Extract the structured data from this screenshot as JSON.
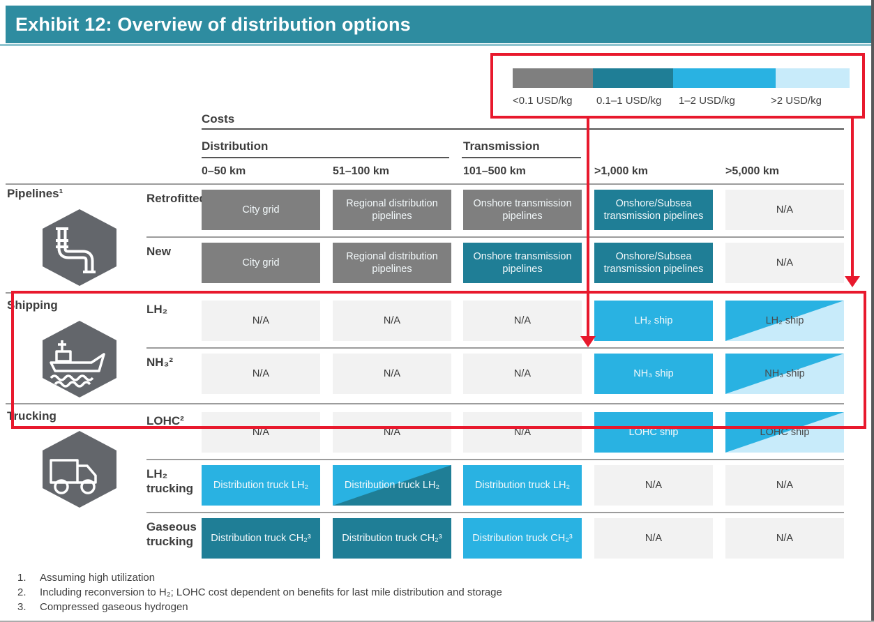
{
  "title": "Exhibit 12: Overview of distribution options",
  "palette": {
    "header_bar": "#2E8CA0",
    "header_bar_underline": "#8FC4CF",
    "accent_red": "#E8192D",
    "na_cell_bg": "#F2F2F2",
    "icon_hex_gray": "#63666B",
    "text_dark": "#3D3D3D",
    "rule_dark": "#555555",
    "rule_light": "#9C9C9C",
    "page_edge": "#58595B"
  },
  "header": {
    "costs_label": "Costs",
    "distribution_label": "Distribution",
    "transmission_label": "Transmission"
  },
  "row_groups": [
    {
      "label": "Pipelines¹",
      "icon": "pipeline-icon"
    },
    {
      "label": "Shipping",
      "icon": "ship-icon"
    },
    {
      "label": "Trucking",
      "icon": "truck-icon"
    }
  ],
  "footnotes": [
    {
      "num": "1.",
      "text": "Assuming high utilization"
    },
    {
      "num": "2.",
      "text": "Including reconversion to H₂; LOHC cost dependent on benefits for last mile distribution and storage"
    },
    {
      "num": "3.",
      "text": "Compressed gaseous hydrogen"
    }
  ],
  "chart_data": {
    "type": "heatmap",
    "title": "Exhibit 12: Overview of distribution options",
    "unit": "USD/kg",
    "legend_bands": [
      "<0.1 USD/kg",
      "0.1–1 USD/kg",
      "1–2 USD/kg",
      ">2 USD/kg"
    ],
    "band_colors": [
      "#7F7F7F",
      "#1F7E96",
      "#29B2E2",
      "#C8EBFA"
    ],
    "columns": [
      "0–50 km",
      "51–100 km",
      "101–500 km",
      ">1,000 km",
      ">5,000 km"
    ],
    "column_groups": [
      {
        "label": "Distribution",
        "columns": [
          "0–50 km",
          "51–100 km"
        ]
      },
      {
        "label": "Transmission",
        "columns": [
          "101–500 km",
          ">1,000 km",
          ">5,000 km"
        ]
      }
    ],
    "rows": [
      {
        "group": "Pipelines¹",
        "option": "Retrofitted",
        "cells": [
          {
            "label": "City grid",
            "bands": [
              0
            ]
          },
          {
            "label": "Regional distribution pipelines",
            "bands": [
              0
            ]
          },
          {
            "label": "Onshore transmission pipelines",
            "bands": [
              0
            ]
          },
          {
            "label": "Onshore/Subsea transmission pipelines",
            "bands": [
              1
            ]
          },
          {
            "label": "N/A",
            "bands": []
          }
        ]
      },
      {
        "group": "Pipelines¹",
        "option": "New",
        "cells": [
          {
            "label": "City grid",
            "bands": [
              0
            ]
          },
          {
            "label": "Regional distribution pipelines",
            "bands": [
              0
            ]
          },
          {
            "label": "Onshore transmission pipelines",
            "bands": [
              1
            ]
          },
          {
            "label": "Onshore/Subsea transmission pipelines",
            "bands": [
              1
            ]
          },
          {
            "label": "N/A",
            "bands": []
          }
        ]
      },
      {
        "group": "Shipping",
        "option": "LH₂",
        "cells": [
          {
            "label": "N/A",
            "bands": []
          },
          {
            "label": "N/A",
            "bands": []
          },
          {
            "label": "N/A",
            "bands": []
          },
          {
            "label": "LH₂ ship",
            "bands": [
              2
            ]
          },
          {
            "label": "LH₂ ship",
            "bands": [
              2,
              3
            ]
          }
        ]
      },
      {
        "group": "Shipping",
        "option": "NH₃²",
        "cells": [
          {
            "label": "N/A",
            "bands": []
          },
          {
            "label": "N/A",
            "bands": []
          },
          {
            "label": "N/A",
            "bands": []
          },
          {
            "label": "NH₃ ship",
            "bands": [
              2
            ]
          },
          {
            "label": "NH₃ ship",
            "bands": [
              2,
              3
            ]
          }
        ]
      },
      {
        "group": "Trucking",
        "option": "LOHC²",
        "cells": [
          {
            "label": "N/A",
            "bands": []
          },
          {
            "label": "N/A",
            "bands": []
          },
          {
            "label": "N/A",
            "bands": []
          },
          {
            "label": "LOHC ship",
            "bands": [
              2
            ]
          },
          {
            "label": "LOHC ship",
            "bands": [
              2,
              3
            ]
          }
        ]
      },
      {
        "group": "Trucking",
        "option": "LH₂ trucking",
        "cells": [
          {
            "label": "Distribution truck LH₂",
            "bands": [
              2
            ]
          },
          {
            "label": "Distribution truck LH₂",
            "bands": [
              2,
              1
            ]
          },
          {
            "label": "Distribution truck LH₂",
            "bands": [
              2
            ]
          },
          {
            "label": "N/A",
            "bands": []
          },
          {
            "label": "N/A",
            "bands": []
          }
        ]
      },
      {
        "group": "Trucking",
        "option": "Gaseous trucking",
        "cells": [
          {
            "label": "Distribution truck CH₂³",
            "bands": [
              1
            ]
          },
          {
            "label": "Distribution truck CH₂³",
            "bands": [
              1
            ]
          },
          {
            "label": "Distribution truck CH₂³",
            "bands": [
              2
            ]
          },
          {
            "label": "N/A",
            "bands": []
          },
          {
            "label": "N/A",
            "bands": []
          }
        ]
      }
    ]
  }
}
